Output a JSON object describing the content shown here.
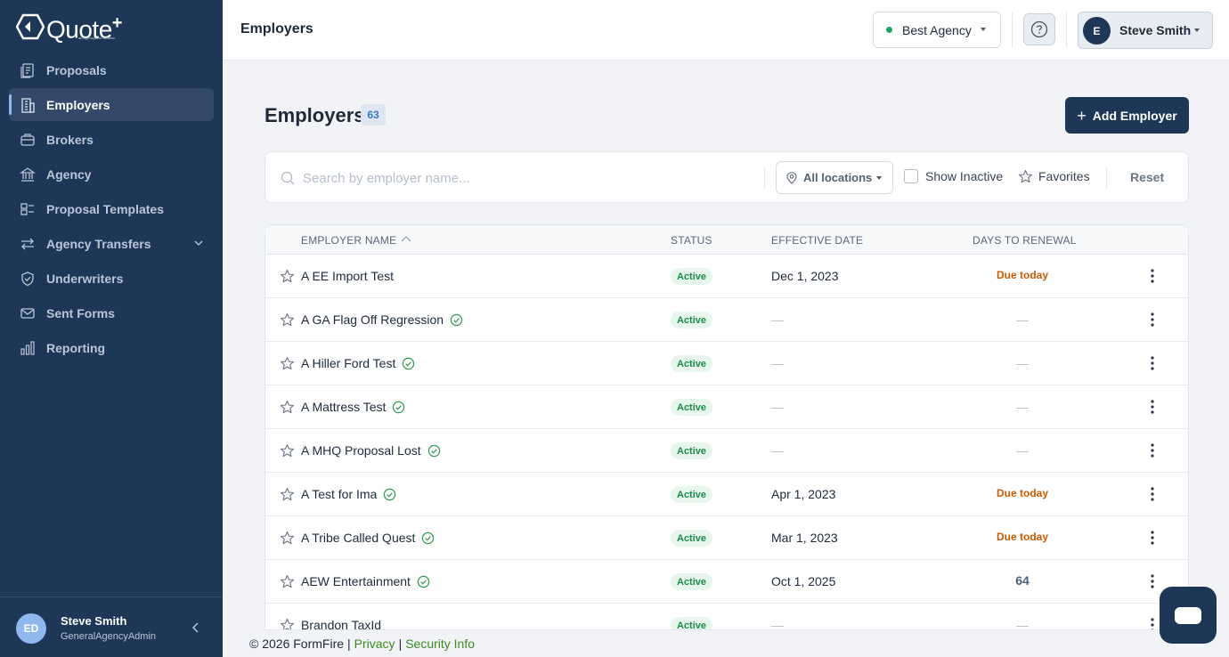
{
  "brand": {
    "name": "Quote",
    "plus": "+",
    "tagline": "an AgencyBloc solution"
  },
  "sidebar": {
    "items": [
      {
        "label": "Proposals",
        "icon": "proposals-icon",
        "active": false
      },
      {
        "label": "Employers",
        "icon": "building-icon",
        "active": true
      },
      {
        "label": "Brokers",
        "icon": "briefcase-icon",
        "active": false
      },
      {
        "label": "Agency",
        "icon": "bank-icon",
        "active": false
      },
      {
        "label": "Proposal Templates",
        "icon": "template-icon",
        "active": false
      },
      {
        "label": "Agency Transfers",
        "icon": "transfer-icon",
        "active": false,
        "expandable": true
      },
      {
        "label": "Underwriters",
        "icon": "shield-check-icon",
        "active": false
      },
      {
        "label": "Sent Forms",
        "icon": "mail-icon",
        "active": false
      },
      {
        "label": "Reporting",
        "icon": "bar-chart-icon",
        "active": false
      }
    ],
    "user": {
      "initials": "ED",
      "name": "Steve Smith",
      "role": "GeneralAgencyAdmin"
    }
  },
  "topbar": {
    "title": "Employers",
    "agency": "Best Agency",
    "user_initial": "E",
    "user_name": "Steve Smith"
  },
  "main": {
    "title": "Employers",
    "count": "63",
    "add_button": "Add Employer",
    "filters": {
      "search_placeholder": "Search by employer name...",
      "location": "All locations",
      "show_inactive": "Show Inactive",
      "favorites": "Favorites",
      "reset": "Reset"
    },
    "columns": [
      "EMPLOYER NAME",
      "STATUS",
      "EFFECTIVE DATE",
      "DAYS TO RENEWAL"
    ],
    "rows": [
      {
        "name": "A EE Import Test",
        "verified": false,
        "status": "Active",
        "date": "Dec 1, 2023",
        "days": "Due today",
        "days_kind": "due"
      },
      {
        "name": "A GA Flag Off Regression",
        "verified": true,
        "status": "Active",
        "date": "—",
        "days": "—",
        "days_kind": "dash"
      },
      {
        "name": "A Hiller Ford Test",
        "verified": true,
        "status": "Active",
        "date": "—",
        "days": "—",
        "days_kind": "dash"
      },
      {
        "name": "A Mattress Test",
        "verified": true,
        "status": "Active",
        "date": "—",
        "days": "—",
        "days_kind": "dash"
      },
      {
        "name": "A MHQ Proposal Lost",
        "verified": true,
        "status": "Active",
        "date": "—",
        "days": "—",
        "days_kind": "dash"
      },
      {
        "name": "A Test for Ima",
        "verified": true,
        "status": "Active",
        "date": "Apr 1, 2023",
        "days": "Due today",
        "days_kind": "due"
      },
      {
        "name": "A Tribe Called Quest",
        "verified": true,
        "status": "Active",
        "date": "Mar 1, 2023",
        "days": "Due today",
        "days_kind": "due"
      },
      {
        "name": "AEW Entertainment",
        "verified": true,
        "status": "Active",
        "date": "Oct 1, 2025",
        "days": "64",
        "days_kind": "num"
      },
      {
        "name": "Brandon TaxId",
        "verified": false,
        "status": "Active",
        "date": "—",
        "days": "—",
        "days_kind": "dash"
      }
    ]
  },
  "footer": {
    "copyright": "© 2026 FormFire",
    "privacy": "Privacy",
    "security": "Security Info"
  }
}
